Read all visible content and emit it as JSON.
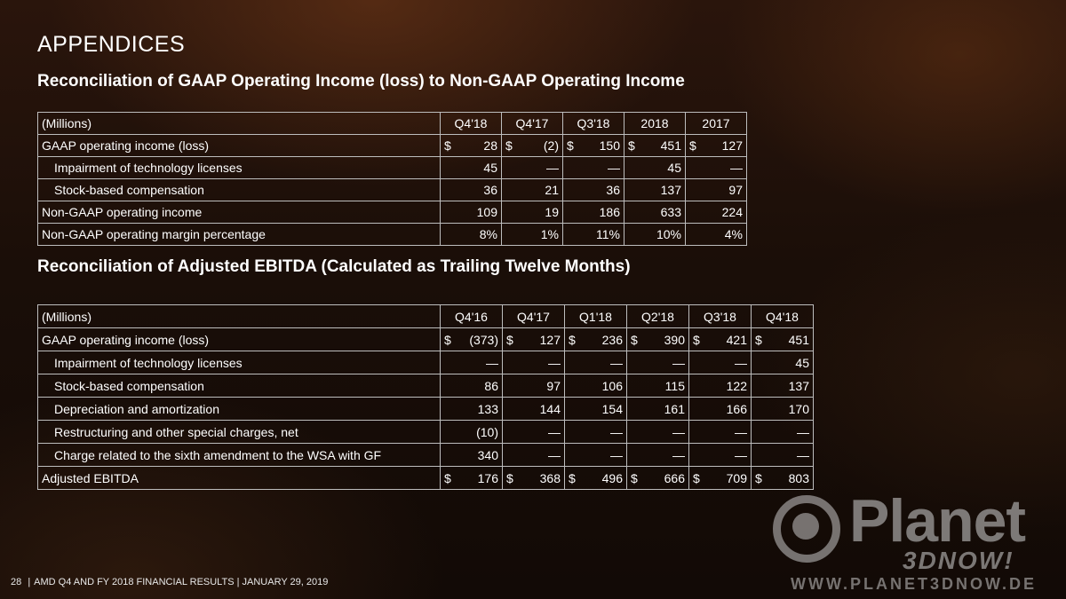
{
  "page": {
    "title": "APPENDICES"
  },
  "table1": {
    "title": "Reconciliation of GAAP Operating Income (loss) to Non-GAAP Operating Income",
    "header": [
      "(Millions)",
      "Q4'18",
      "Q4'17",
      "Q3'18",
      "2018",
      "2017"
    ],
    "rows": [
      {
        "label": "GAAP operating income (loss)",
        "cells": [
          {
            "cur": "$",
            "v": "28"
          },
          {
            "cur": "$",
            "v": "(2)"
          },
          {
            "cur": "$",
            "v": "150"
          },
          {
            "cur": "$",
            "v": "451"
          },
          {
            "cur": "$",
            "v": "127"
          }
        ]
      },
      {
        "label": "Impairment of technology licenses",
        "cells": [
          {
            "cur": "",
            "v": "45"
          },
          {
            "cur": "",
            "v": "—"
          },
          {
            "cur": "",
            "v": "—"
          },
          {
            "cur": "",
            "v": "45"
          },
          {
            "cur": "",
            "v": "—"
          }
        ]
      },
      {
        "label": "Stock-based compensation",
        "cells": [
          {
            "cur": "",
            "v": "36"
          },
          {
            "cur": "",
            "v": "21"
          },
          {
            "cur": "",
            "v": "36"
          },
          {
            "cur": "",
            "v": "137"
          },
          {
            "cur": "",
            "v": "97"
          }
        ]
      },
      {
        "label": "Non-GAAP operating income",
        "cells": [
          {
            "cur": "",
            "v": "109"
          },
          {
            "cur": "",
            "v": "19"
          },
          {
            "cur": "",
            "v": "186"
          },
          {
            "cur": "",
            "v": "633"
          },
          {
            "cur": "",
            "v": "224"
          }
        ]
      },
      {
        "label": "Non-GAAP operating margin percentage",
        "cells": [
          {
            "cur": "",
            "v": "8%"
          },
          {
            "cur": "",
            "v": "1%"
          },
          {
            "cur": "",
            "v": "11%"
          },
          {
            "cur": "",
            "v": "10%"
          },
          {
            "cur": "",
            "v": "4%"
          }
        ]
      }
    ]
  },
  "table2": {
    "title": "Reconciliation of Adjusted EBITDA (Calculated as Trailing Twelve Months)",
    "header": [
      "(Millions)",
      "Q4'16",
      "Q4'17",
      "Q1'18",
      "Q2'18",
      "Q3'18",
      "Q4'18"
    ],
    "rows": [
      {
        "label": "GAAP operating income (loss)",
        "cells": [
          {
            "cur": "$",
            "v": "(373)"
          },
          {
            "cur": "$",
            "v": "127"
          },
          {
            "cur": "$",
            "v": "236"
          },
          {
            "cur": "$",
            "v": "390"
          },
          {
            "cur": "$",
            "v": "421"
          },
          {
            "cur": "$",
            "v": "451"
          }
        ]
      },
      {
        "label": "Impairment of technology licenses",
        "cells": [
          {
            "cur": "",
            "v": "—"
          },
          {
            "cur": "",
            "v": "—"
          },
          {
            "cur": "",
            "v": "—"
          },
          {
            "cur": "",
            "v": "—"
          },
          {
            "cur": "",
            "v": "—"
          },
          {
            "cur": "",
            "v": "45"
          }
        ]
      },
      {
        "label": "Stock-based compensation",
        "cells": [
          {
            "cur": "",
            "v": "86"
          },
          {
            "cur": "",
            "v": "97"
          },
          {
            "cur": "",
            "v": "106"
          },
          {
            "cur": "",
            "v": "115"
          },
          {
            "cur": "",
            "v": "122"
          },
          {
            "cur": "",
            "v": "137"
          }
        ]
      },
      {
        "label": "Depreciation and amortization",
        "cells": [
          {
            "cur": "",
            "v": "133"
          },
          {
            "cur": "",
            "v": "144"
          },
          {
            "cur": "",
            "v": "154"
          },
          {
            "cur": "",
            "v": "161"
          },
          {
            "cur": "",
            "v": "166"
          },
          {
            "cur": "",
            "v": "170"
          }
        ]
      },
      {
        "label": "Restructuring and other special charges, net",
        "cells": [
          {
            "cur": "",
            "v": "(10)"
          },
          {
            "cur": "",
            "v": "—"
          },
          {
            "cur": "",
            "v": "—"
          },
          {
            "cur": "",
            "v": "—"
          },
          {
            "cur": "",
            "v": "—"
          },
          {
            "cur": "",
            "v": "—"
          }
        ]
      },
      {
        "label": "Charge related to the sixth amendment to the WSA with GF",
        "cells": [
          {
            "cur": "",
            "v": "340"
          },
          {
            "cur": "",
            "v": "—"
          },
          {
            "cur": "",
            "v": "—"
          },
          {
            "cur": "",
            "v": "—"
          },
          {
            "cur": "",
            "v": "—"
          },
          {
            "cur": "",
            "v": "—"
          }
        ]
      },
      {
        "label": "Adjusted EBITDA",
        "cells": [
          {
            "cur": "$",
            "v": "176"
          },
          {
            "cur": "$",
            "v": "368"
          },
          {
            "cur": "$",
            "v": "496"
          },
          {
            "cur": "$",
            "v": "666"
          },
          {
            "cur": "$",
            "v": "709"
          },
          {
            "cur": "$",
            "v": "803"
          }
        ]
      }
    ]
  },
  "footer": {
    "page_number": "28",
    "separator": "|",
    "text": "AMD Q4 AND FY 2018 FINANCIAL RESULTS |  JANUARY 29, 2019"
  },
  "watermark": {
    "brand": "Planet",
    "tagline": "3DNOW!",
    "url": "WWW.PLANET3DNOW.DE"
  }
}
